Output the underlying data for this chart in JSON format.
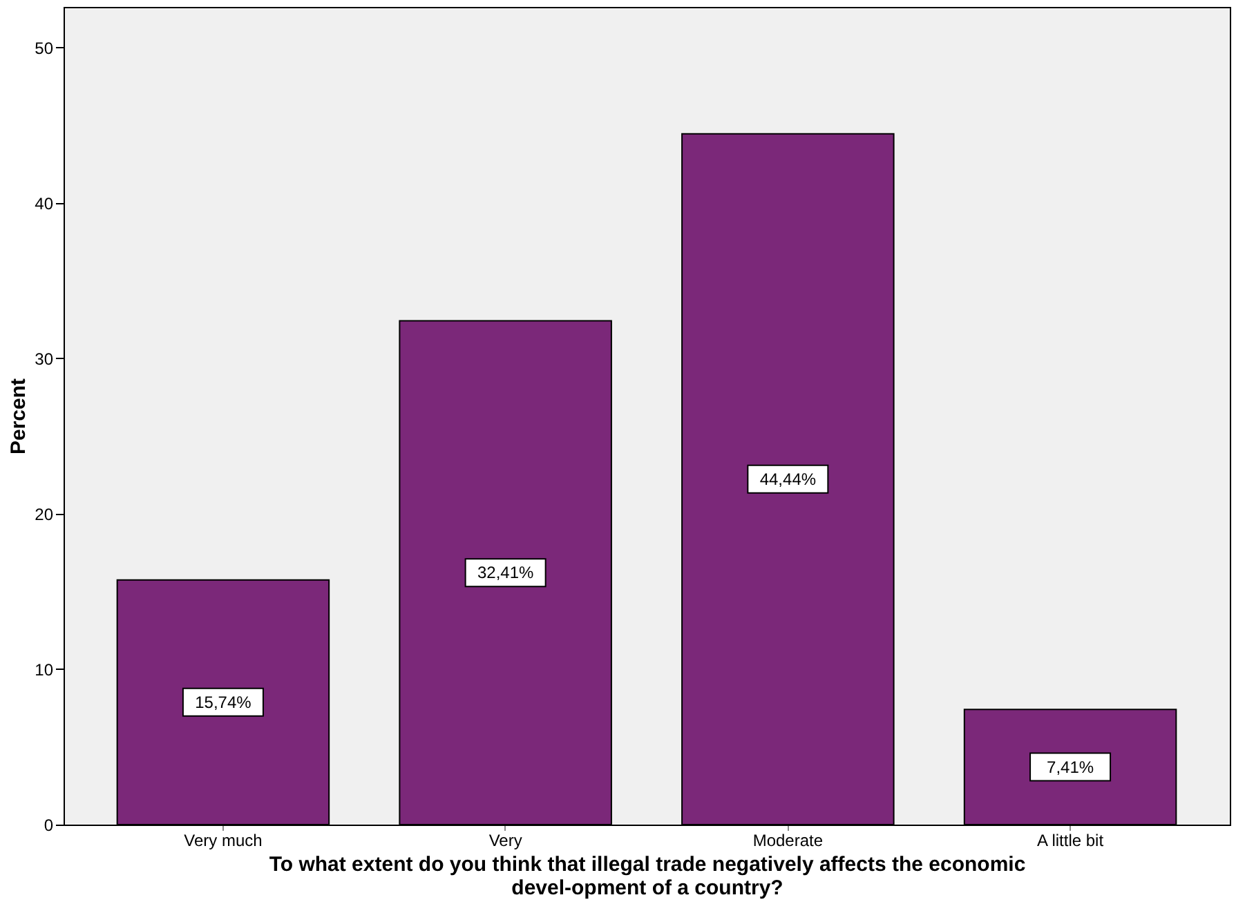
{
  "chart_data": {
    "type": "bar",
    "xlabel": "To what extent do you think that illegal trade negatively affects the economic devel-opment of a country?",
    "ylabel": "Percent",
    "categories": [
      "Very much",
      "Very",
      "Moderate",
      "A little bit"
    ],
    "values": [
      15.74,
      32.41,
      44.44,
      7.41
    ],
    "value_labels": [
      "15,74%",
      "32,41%",
      "44,44%",
      "7,41%"
    ],
    "color": "#7b2879",
    "ylim": [
      0,
      52.6
    ],
    "yticks": [
      0,
      10,
      20,
      30,
      40,
      50
    ],
    "grid": false
  }
}
